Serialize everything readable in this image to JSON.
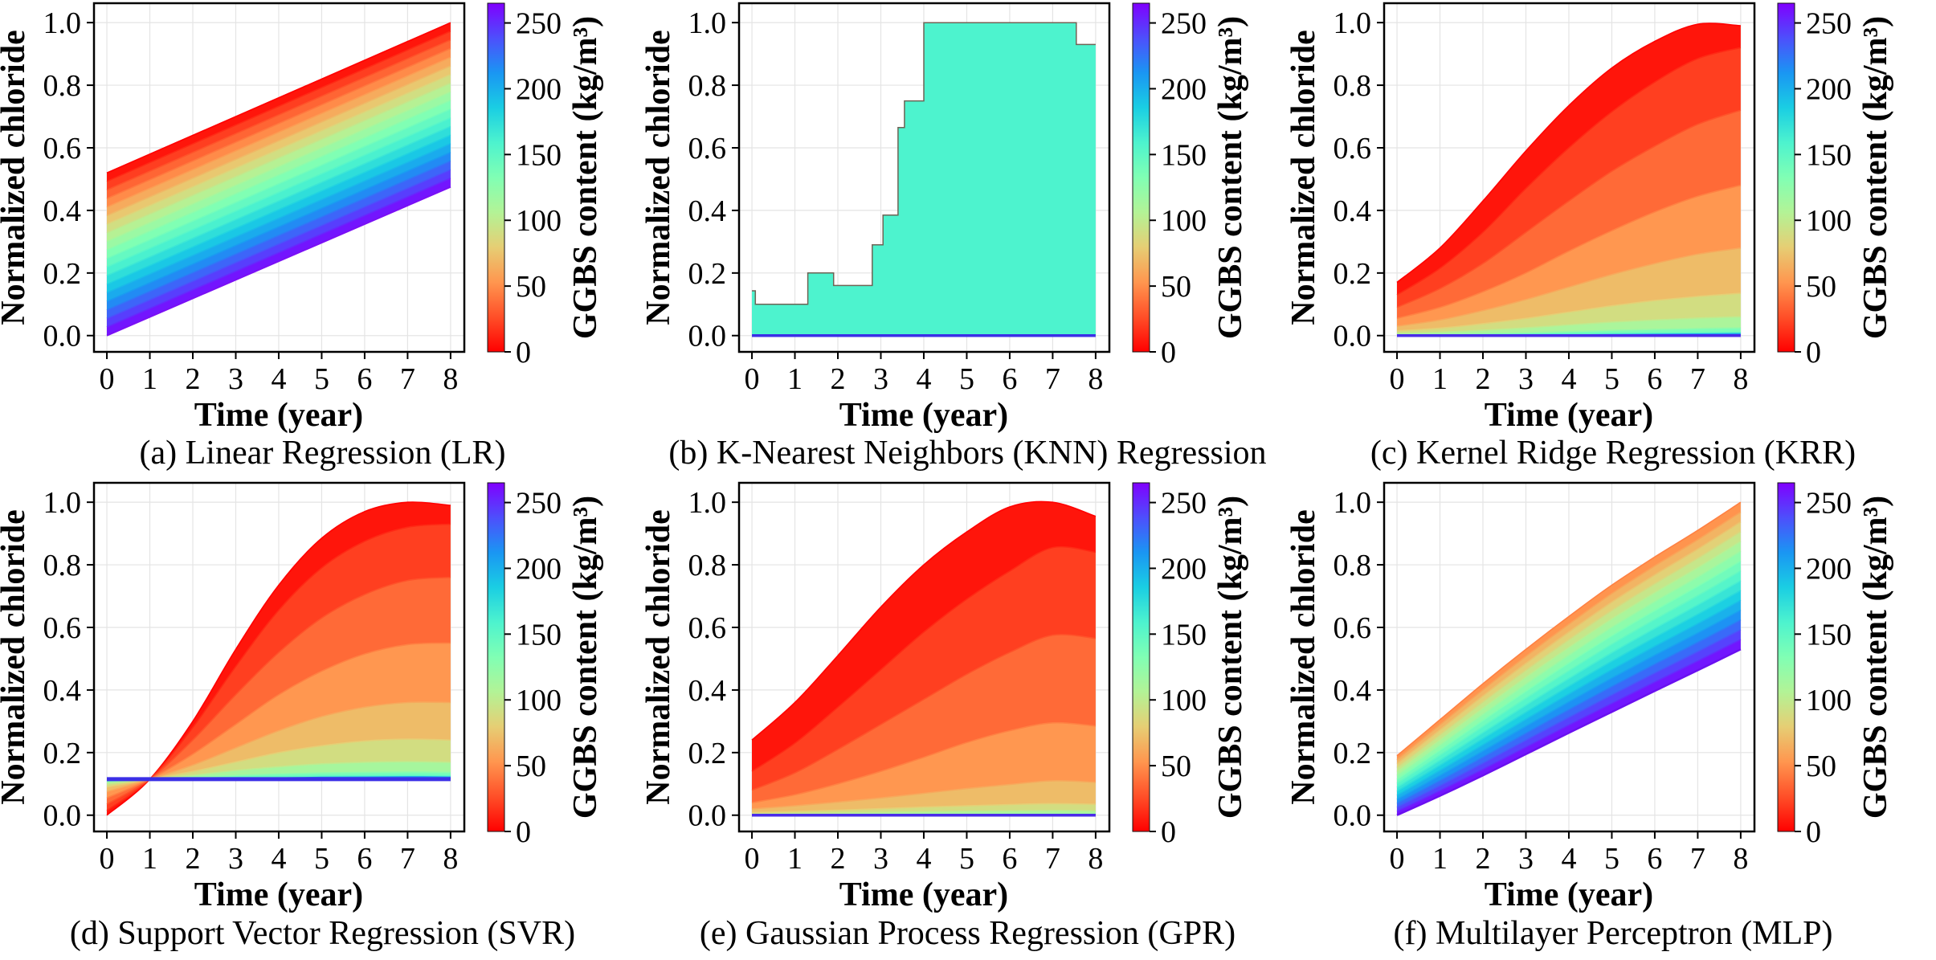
{
  "figure": {
    "background": "#ffffff",
    "grid_color": "#e4e4e4",
    "frame_color": "#000000",
    "tick_color": "#000000"
  },
  "axes": {
    "xlabel": "Time (year)",
    "ylabel": "Normalized chloride",
    "xticks": [
      0,
      1,
      2,
      3,
      4,
      5,
      6,
      7,
      8
    ],
    "ytick_labels": [
      "0.0",
      "0.2",
      "0.4",
      "0.6",
      "0.8",
      "1.0"
    ],
    "yticks": [
      0.0,
      0.2,
      0.4,
      0.6,
      0.8,
      1.0
    ],
    "xlim": [
      -0.3,
      8.32
    ],
    "ylim": [
      -0.052,
      1.062
    ]
  },
  "colorbar": {
    "label": "GGBS content (kg/m³)",
    "min": 0,
    "max": 265,
    "ticks": [
      0,
      50,
      100,
      150,
      200,
      250
    ],
    "stops": [
      {
        "p": 0.0,
        "c": "#FF0000"
      },
      {
        "p": 0.1,
        "c": "#FF4F28"
      },
      {
        "p": 0.2,
        "c": "#FF964F"
      },
      {
        "p": 0.3,
        "c": "#E6CE74"
      },
      {
        "p": 0.4,
        "c": "#B3F396"
      },
      {
        "p": 0.5,
        "c": "#80FFB4"
      },
      {
        "p": 0.6,
        "c": "#4DF3CE"
      },
      {
        "p": 0.7,
        "c": "#1ACEE3"
      },
      {
        "p": 0.8,
        "c": "#1A96F3"
      },
      {
        "p": 0.9,
        "c": "#4D4FFC"
      },
      {
        "p": 1.0,
        "c": "#8000FF"
      }
    ]
  },
  "chart_data": [
    {
      "id": "a",
      "type": "area",
      "caption": "(a) Linear Regression (LR)",
      "kind": "blend",
      "x": [
        0,
        8
      ],
      "top": {
        "level": 0,
        "y": [
          0.52,
          1.0
        ]
      },
      "bottom": {
        "level": 265,
        "y": [
          0.0,
          0.475
        ]
      },
      "inner_count": 18,
      "level_range": [
        0,
        265
      ],
      "bottom_line": {
        "color": "#7A0FF5",
        "width": 2
      }
    },
    {
      "id": "b",
      "type": "area",
      "caption": "(b) K-Nearest Neighbors (KNN) Regression",
      "kind": "steps",
      "envelope": {
        "x": [
          0,
          0.08,
          0.08,
          1.3,
          1.3,
          1.9,
          1.9,
          2.8,
          2.8,
          3.05,
          3.05,
          3.4,
          3.4,
          3.55,
          3.55,
          4.0,
          4.0,
          7.55,
          7.55,
          8.0
        ],
        "y": [
          0.143,
          0.143,
          0.1,
          0.1,
          0.2,
          0.2,
          0.16,
          0.16,
          0.29,
          0.29,
          0.385,
          0.385,
          0.665,
          0.665,
          0.75,
          0.75,
          1.0,
          1.0,
          0.93,
          0.93
        ]
      },
      "base_y": 0.0,
      "fill": "#4DF3CE",
      "edge": {
        "color": "#6F6355",
        "width": 1.5
      },
      "bottom_line": {
        "color": "#3B2FE6",
        "width": 3.5
      }
    },
    {
      "id": "c",
      "type": "area",
      "caption": "(c) Kernel Ridge Regression (KRR)",
      "kind": "fan",
      "x": [
        0,
        1,
        2,
        3,
        4,
        5,
        6,
        7,
        8
      ],
      "boundaries": [
        {
          "level": 0,
          "y": [
            0.17,
            0.28,
            0.43,
            0.59,
            0.735,
            0.855,
            0.94,
            0.995,
            0.99
          ]
        },
        {
          "level": 14,
          "y": [
            0.13,
            0.215,
            0.33,
            0.47,
            0.6,
            0.715,
            0.81,
            0.885,
            0.92
          ]
        },
        {
          "level": 28,
          "y": [
            0.09,
            0.15,
            0.23,
            0.33,
            0.43,
            0.525,
            0.605,
            0.675,
            0.72
          ]
        },
        {
          "level": 45,
          "y": [
            0.055,
            0.09,
            0.14,
            0.2,
            0.27,
            0.335,
            0.395,
            0.445,
            0.48
          ]
        },
        {
          "level": 62,
          "y": [
            0.03,
            0.05,
            0.08,
            0.115,
            0.155,
            0.195,
            0.23,
            0.26,
            0.28
          ]
        },
        {
          "level": 80,
          "y": [
            0.015,
            0.024,
            0.038,
            0.055,
            0.075,
            0.095,
            0.112,
            0.125,
            0.135
          ]
        },
        {
          "level": 100,
          "y": [
            0.007,
            0.011,
            0.017,
            0.025,
            0.034,
            0.043,
            0.05,
            0.056,
            0.06
          ]
        },
        {
          "level": 120,
          "y": [
            0.003,
            0.004,
            0.006,
            0.009,
            0.013,
            0.017,
            0.02,
            0.023,
            0.025
          ]
        },
        {
          "level": 150,
          "y": [
            0.001,
            0.002,
            0.003,
            0.004,
            0.006,
            0.007,
            0.008,
            0.009,
            0.01
          ]
        },
        {
          "level": 265,
          "y": [
            0,
            0,
            0,
            0,
            0,
            0,
            0,
            0,
            0
          ]
        }
      ],
      "bottom_line": {
        "color": "#4A2BE8",
        "width": 3.5
      }
    },
    {
      "id": "d",
      "type": "area",
      "caption": "(d) Support Vector Regression (SVR)",
      "kind": "fan",
      "x": [
        0,
        1,
        2,
        3,
        4,
        5,
        6,
        7,
        8
      ],
      "boundaries": [
        {
          "level": 0,
          "y": [
            0.0,
            0.115,
            0.3,
            0.53,
            0.735,
            0.885,
            0.97,
            1.0,
            0.99
          ]
        },
        {
          "level": 14,
          "y": [
            0.015,
            0.115,
            0.28,
            0.475,
            0.655,
            0.79,
            0.875,
            0.92,
            0.93
          ]
        },
        {
          "level": 28,
          "y": [
            0.035,
            0.115,
            0.24,
            0.385,
            0.52,
            0.63,
            0.705,
            0.75,
            0.76
          ]
        },
        {
          "level": 45,
          "y": [
            0.055,
            0.115,
            0.195,
            0.29,
            0.385,
            0.46,
            0.515,
            0.545,
            0.55
          ]
        },
        {
          "level": 62,
          "y": [
            0.075,
            0.115,
            0.16,
            0.215,
            0.27,
            0.315,
            0.345,
            0.36,
            0.36
          ]
        },
        {
          "level": 80,
          "y": [
            0.09,
            0.115,
            0.14,
            0.17,
            0.2,
            0.222,
            0.237,
            0.243,
            0.24
          ]
        },
        {
          "level": 100,
          "y": [
            0.1,
            0.115,
            0.128,
            0.143,
            0.155,
            0.164,
            0.169,
            0.171,
            0.169
          ]
        },
        {
          "level": 125,
          "y": [
            0.108,
            0.115,
            0.121,
            0.127,
            0.132,
            0.135,
            0.137,
            0.138,
            0.137
          ]
        },
        {
          "level": 150,
          "y": [
            0.11,
            0.115,
            0.118,
            0.121,
            0.123,
            0.125,
            0.126,
            0.127,
            0.126
          ]
        },
        {
          "level": 265,
          "y": [
            0.115,
            0.115,
            0.115,
            0.115,
            0.115,
            0.115,
            0.115,
            0.115,
            0.115
          ]
        }
      ],
      "bottom_line": {
        "color": "#3B2FE6",
        "width": 5
      }
    },
    {
      "id": "e",
      "type": "area",
      "caption": "(e) Gaussian Process Regression (GPR)",
      "kind": "fan",
      "x": [
        0,
        1,
        2,
        3,
        4,
        5,
        6,
        7,
        8
      ],
      "boundaries": [
        {
          "level": 0,
          "y": [
            0.24,
            0.36,
            0.51,
            0.665,
            0.8,
            0.905,
            0.985,
            1.0,
            0.955
          ]
        },
        {
          "level": 14,
          "y": [
            0.14,
            0.23,
            0.345,
            0.465,
            0.585,
            0.69,
            0.78,
            0.855,
            0.84
          ]
        },
        {
          "level": 28,
          "y": [
            0.08,
            0.135,
            0.21,
            0.29,
            0.37,
            0.45,
            0.52,
            0.575,
            0.565
          ]
        },
        {
          "level": 45,
          "y": [
            0.04,
            0.065,
            0.1,
            0.14,
            0.185,
            0.232,
            0.27,
            0.295,
            0.285
          ]
        },
        {
          "level": 62,
          "y": [
            0.02,
            0.03,
            0.042,
            0.055,
            0.07,
            0.085,
            0.098,
            0.11,
            0.105
          ]
        },
        {
          "level": 80,
          "y": [
            0.008,
            0.012,
            0.016,
            0.021,
            0.026,
            0.03,
            0.034,
            0.037,
            0.035
          ]
        },
        {
          "level": 100,
          "y": [
            0.003,
            0.005,
            0.007,
            0.009,
            0.011,
            0.013,
            0.014,
            0.015,
            0.014
          ]
        },
        {
          "level": 120,
          "y": [
            0.001,
            0.001,
            0.002,
            0.002,
            0.003,
            0.003,
            0.004,
            0.004,
            0.004
          ]
        },
        {
          "level": 265,
          "y": [
            0,
            0,
            0,
            0,
            0,
            0,
            0,
            0,
            0
          ]
        }
      ],
      "bottom_line": {
        "color": "#4A2BE8",
        "width": 3.5
      }
    },
    {
      "id": "f",
      "type": "area",
      "caption": "(f) Multilayer Perceptron (MLP)",
      "kind": "blend",
      "x": [
        0,
        1,
        2,
        3,
        4,
        5,
        6,
        7,
        8
      ],
      "top": {
        "level": 45,
        "y": [
          0.19,
          0.305,
          0.42,
          0.53,
          0.635,
          0.735,
          0.825,
          0.91,
          1.0
        ]
      },
      "bottom": {
        "level": 265,
        "y": [
          0.0,
          0.062,
          0.127,
          0.195,
          0.263,
          0.33,
          0.397,
          0.463,
          0.53
        ]
      },
      "inner_count": 14,
      "level_range": [
        45,
        265
      ],
      "bottom_line": {
        "color": "#6A10F0",
        "width": 2.5
      }
    }
  ]
}
